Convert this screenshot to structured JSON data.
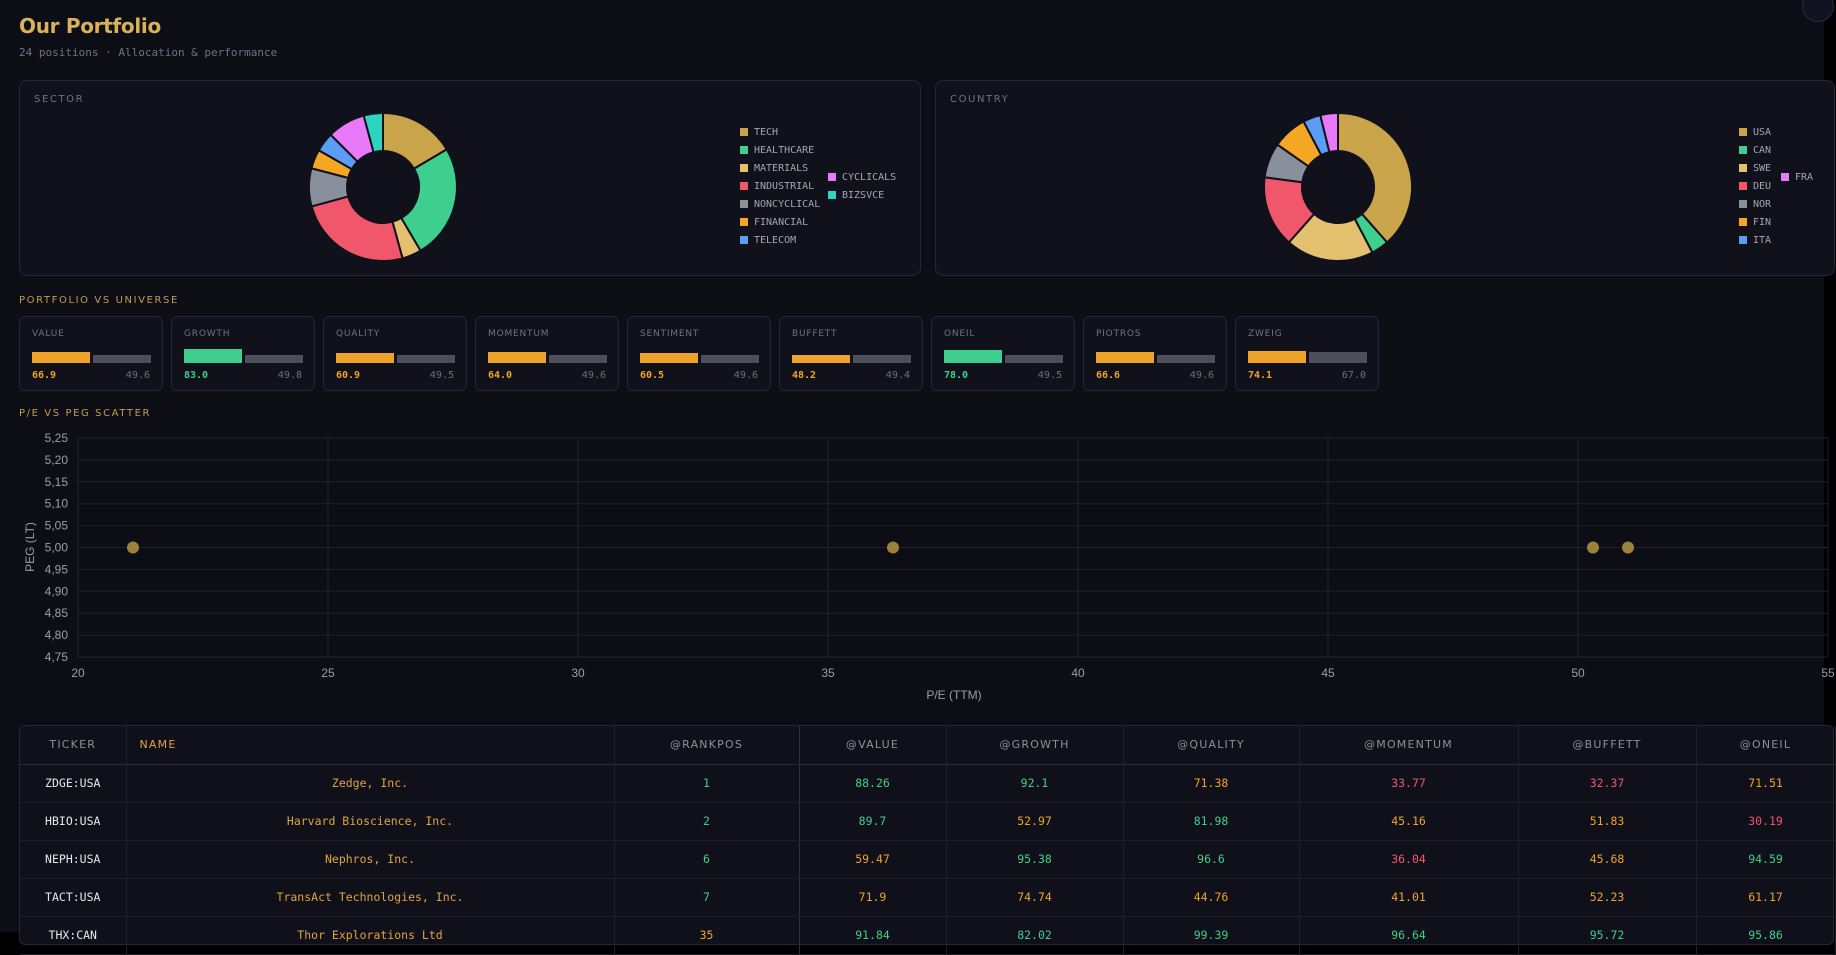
{
  "header": {
    "title": "Our Portfolio",
    "subtitle": "24 positions · Allocation & performance"
  },
  "sector": {
    "label": "SECTOR",
    "slices": [
      {
        "name": "TECH",
        "value": 16.5,
        "color": "#c9a44a"
      },
      {
        "name": "HEALTHCARE",
        "value": 25.0,
        "color": "#3ecf8e"
      },
      {
        "name": "MATERIALS",
        "value": 4.2,
        "color": "#e3c06e"
      },
      {
        "name": "INDUSTRIAL",
        "value": 25.0,
        "color": "#f0576b"
      },
      {
        "name": "NONCYCLICAL",
        "value": 8.3,
        "color": "#8a8f9c"
      },
      {
        "name": "FINANCIAL",
        "value": 4.2,
        "color": "#f5a623"
      },
      {
        "name": "TELECOM",
        "value": 4.2,
        "color": "#5b9cf5"
      },
      {
        "name": "CYCLICALS",
        "value": 8.3,
        "color": "#e879f9"
      },
      {
        "name": "BIZSVCE",
        "value": 4.2,
        "color": "#2dd4bf"
      }
    ]
  },
  "country": {
    "label": "COUNTRY",
    "slices": [
      {
        "name": "USA",
        "value": 42.0,
        "color": "#c9a44a"
      },
      {
        "name": "CAN",
        "value": 4.2,
        "color": "#3ecf8e"
      },
      {
        "name": "SWE",
        "value": 21.0,
        "color": "#e3c06e"
      },
      {
        "name": "DEU",
        "value": 17.0,
        "color": "#f0576b"
      },
      {
        "name": "NOR",
        "value": 8.3,
        "color": "#8a8f9c"
      },
      {
        "name": "FIN",
        "value": 8.3,
        "color": "#f5a623"
      },
      {
        "name": "ITA",
        "value": 4.2,
        "color": "#5b9cf5"
      },
      {
        "name": "FRA",
        "value": 4.2,
        "color": "#e879f9"
      }
    ]
  },
  "compare": {
    "label": "PORTFOLIO VS UNIVERSE",
    "metrics": [
      {
        "name": "VALUE",
        "portfolio": "66.9",
        "universe": "49.6",
        "color": "#f0a32a"
      },
      {
        "name": "GROWTH",
        "portfolio": "83.0",
        "universe": "49.8",
        "color": "#3ecf8e"
      },
      {
        "name": "QUALITY",
        "portfolio": "60.9",
        "universe": "49.5",
        "color": "#f0a32a"
      },
      {
        "name": "MOMENTUM",
        "portfolio": "64.0",
        "universe": "49.6",
        "color": "#f0a32a"
      },
      {
        "name": "SENTIMENT",
        "portfolio": "60.5",
        "universe": "49.6",
        "color": "#f0a32a"
      },
      {
        "name": "BUFFETT",
        "portfolio": "48.2",
        "universe": "49.4",
        "color": "#f0a32a"
      },
      {
        "name": "ONEIL",
        "portfolio": "78.0",
        "universe": "49.5",
        "color": "#3ecf8e"
      },
      {
        "name": "PIOTROS",
        "portfolio": "66.6",
        "universe": "49.6",
        "color": "#f0a32a"
      },
      {
        "name": "ZWEIG",
        "portfolio": "74.1",
        "universe": "67.0",
        "color": "#f0a32a"
      }
    ]
  },
  "scatter": {
    "label": "P/E VS PEG SCATTER",
    "xlabel": "P/E (TTM)",
    "ylabel": "PEG (LT)",
    "x_ticks": [
      "20",
      "25",
      "30",
      "35",
      "40",
      "45",
      "50",
      "55"
    ],
    "y_ticks": [
      "4,75",
      "4,80",
      "4,85",
      "4,90",
      "4,95",
      "5,00",
      "5,05",
      "5,10",
      "5,15",
      "5,20",
      "5,25"
    ]
  },
  "chart_data": {
    "type": "scatter",
    "x": [
      21.1,
      36.3,
      50.3,
      51.0
    ],
    "y": [
      5.0,
      5.0,
      5.0,
      5.0
    ],
    "xlabel": "P/E (TTM)",
    "ylabel": "PEG (LT)",
    "xlim": [
      20,
      55
    ],
    "ylim": [
      4.75,
      5.25
    ],
    "grid": true,
    "point_color": "#9c8138"
  },
  "table": {
    "columns": [
      "TICKER",
      "NAME",
      "@RANKPOS",
      "@VALUE",
      "@GROWTH",
      "@QUALITY",
      "@MOMENTUM",
      "@BUFFETT",
      "@ONEIL"
    ],
    "rows": [
      [
        "ZDGE:USA",
        "Zedge, Inc.",
        "1",
        "88.26",
        "92.1",
        "71.38",
        "33.77",
        "32.37",
        "71.51"
      ],
      [
        "HBIO:USA",
        "Harvard Bioscience, Inc.",
        "2",
        "89.7",
        "52.97",
        "81.98",
        "45.16",
        "51.83",
        "30.19"
      ],
      [
        "NEPH:USA",
        "Nephros, Inc.",
        "6",
        "59.47",
        "95.38",
        "96.6",
        "36.04",
        "45.68",
        "94.59"
      ],
      [
        "TACT:USA",
        "TransAct Technologies, Inc.",
        "7",
        "71.9",
        "74.74",
        "44.76",
        "41.01",
        "52.23",
        "61.17"
      ],
      [
        "THX:CAN",
        "Thor Explorations Ltd",
        "35",
        "91.84",
        "82.02",
        "99.39",
        "96.64",
        "95.72",
        "95.86"
      ]
    ]
  }
}
